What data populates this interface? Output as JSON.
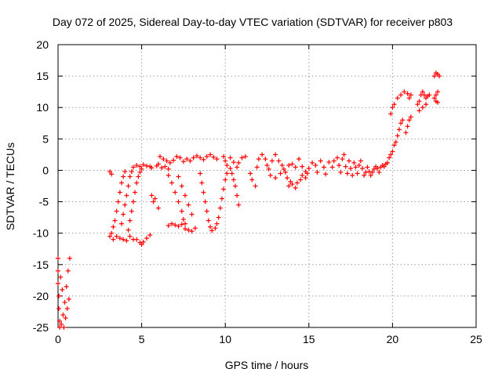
{
  "chart_data": {
    "type": "scatter",
    "title": "Day 072 of 2025, Sidereal Day-to-day VTEC variation (SDTVAR) for receiver p803",
    "xlabel": "GPS time / hours",
    "ylabel": "SDTVAR / TECUs",
    "xlim": [
      0,
      25
    ],
    "ylim": [
      -25,
      20
    ],
    "x_ticks": [
      0,
      5,
      10,
      15,
      20,
      25
    ],
    "x_tick_labels": [
      "0",
      "5",
      "10",
      "15",
      "20",
      "25"
    ],
    "y_ticks": [
      -25,
      -20,
      -15,
      -10,
      -5,
      0,
      5,
      10,
      15,
      20
    ],
    "y_tick_labels": [
      "-25",
      "-20",
      "-15",
      "-10",
      "-5",
      "0",
      "5",
      "10",
      "15",
      "20"
    ],
    "grid": true,
    "marker": "+",
    "series": [
      {
        "name": "SDTVAR",
        "color": "#ff0000",
        "points": [
          [
            0.0,
            -14
          ],
          [
            0.0,
            -16
          ],
          [
            0.0,
            -18
          ],
          [
            0.05,
            -20
          ],
          [
            0.05,
            -22
          ],
          [
            0.1,
            -24
          ],
          [
            0.1,
            -25
          ],
          [
            0.2,
            -24.5
          ],
          [
            0.3,
            -23
          ],
          [
            0.4,
            -21
          ],
          [
            0.5,
            -18.5
          ],
          [
            0.6,
            -16
          ],
          [
            0.7,
            -14
          ],
          [
            0.35,
            -25
          ],
          [
            0.45,
            -23.5
          ],
          [
            0.55,
            -22
          ],
          [
            0.65,
            -20.5
          ],
          [
            0.25,
            -19
          ],
          [
            0.15,
            -17
          ],
          [
            3.1,
            -0.2
          ],
          [
            3.2,
            -0.6
          ],
          [
            3.1,
            -10.5
          ],
          [
            3.2,
            -10
          ],
          [
            3.3,
            -9
          ],
          [
            3.4,
            -8
          ],
          [
            3.5,
            -6.5
          ],
          [
            3.6,
            -5
          ],
          [
            3.7,
            -3.5
          ],
          [
            3.8,
            -2
          ],
          [
            3.9,
            -1
          ],
          [
            4.0,
            -0.2
          ],
          [
            3.3,
            -11
          ],
          [
            3.5,
            -10.5
          ],
          [
            3.7,
            -10.8
          ],
          [
            3.9,
            -11
          ],
          [
            4.1,
            -11.2
          ],
          [
            4.3,
            -10.5
          ],
          [
            4.5,
            -11
          ],
          [
            4.7,
            -11
          ],
          [
            4.9,
            -11.5
          ],
          [
            5.0,
            -11.8
          ],
          [
            5.1,
            -11.4
          ],
          [
            5.3,
            -10.8
          ],
          [
            5.5,
            -10.3
          ],
          [
            3.8,
            -8.5
          ],
          [
            3.9,
            -7
          ],
          [
            4.0,
            -5.5
          ],
          [
            4.1,
            -4
          ],
          [
            4.2,
            -2.5
          ],
          [
            4.3,
            -1
          ],
          [
            4.4,
            -0.2
          ],
          [
            4.2,
            -9.5
          ],
          [
            4.3,
            -8
          ],
          [
            4.4,
            -6.5
          ],
          [
            4.5,
            -5
          ],
          [
            4.6,
            -3.5
          ],
          [
            4.7,
            -2
          ],
          [
            4.8,
            -1
          ],
          [
            4.9,
            -0.3
          ],
          [
            5.0,
            0.2
          ],
          [
            4.5,
            0.5
          ],
          [
            4.7,
            0.8
          ],
          [
            4.9,
            0.6
          ],
          [
            5.1,
            0.9
          ],
          [
            5.3,
            0.7
          ],
          [
            5.5,
            0.6
          ],
          [
            5.6,
            -4
          ],
          [
            5.7,
            -5
          ],
          [
            5.8,
            -4.5
          ],
          [
            6.0,
            -6
          ],
          [
            5.6,
            0.4
          ],
          [
            5.9,
            0.7
          ],
          [
            6.0,
            1.0
          ],
          [
            6.2,
            0.4
          ],
          [
            6.4,
            0.6
          ],
          [
            6.6,
            0.2
          ],
          [
            6.1,
            2.2
          ],
          [
            6.3,
            1.8
          ],
          [
            6.5,
            1.5
          ],
          [
            6.7,
            1.2
          ],
          [
            6.9,
            1.6
          ],
          [
            7.1,
            2.2
          ],
          [
            7.3,
            2.0
          ],
          [
            7.5,
            1.4
          ],
          [
            7.7,
            1.8
          ],
          [
            7.9,
            1.5
          ],
          [
            8.1,
            2.0
          ],
          [
            8.3,
            2.3
          ],
          [
            8.5,
            2.0
          ],
          [
            8.7,
            1.7
          ],
          [
            8.9,
            2.2
          ],
          [
            9.1,
            2.5
          ],
          [
            9.3,
            2.1
          ],
          [
            9.5,
            1.8
          ],
          [
            6.6,
            -0.8
          ],
          [
            6.8,
            -2
          ],
          [
            7.0,
            -3.5
          ],
          [
            7.2,
            -5
          ],
          [
            7.4,
            -6.5
          ],
          [
            7.5,
            -7.8
          ],
          [
            7.6,
            -8.5
          ],
          [
            7.2,
            -1
          ],
          [
            7.4,
            -2.5
          ],
          [
            7.6,
            -4
          ],
          [
            7.8,
            -5.5
          ],
          [
            8.0,
            -7
          ],
          [
            6.6,
            -8.8
          ],
          [
            6.8,
            -8.5
          ],
          [
            7.0,
            -8.7
          ],
          [
            7.2,
            -8.9
          ],
          [
            7.4,
            -8.6
          ],
          [
            7.6,
            -9.3
          ],
          [
            7.8,
            -9.5
          ],
          [
            8.0,
            -9.7
          ],
          [
            8.2,
            -9.2
          ],
          [
            8.5,
            -0.5
          ],
          [
            8.6,
            -2
          ],
          [
            8.7,
            -3.5
          ],
          [
            8.8,
            -5
          ],
          [
            8.9,
            -6.5
          ],
          [
            9.0,
            -8
          ],
          [
            9.1,
            -9
          ],
          [
            9.2,
            -9.6
          ],
          [
            9.4,
            -9.2
          ],
          [
            9.5,
            -8.5
          ],
          [
            9.6,
            -7.5
          ],
          [
            9.7,
            -6
          ],
          [
            9.8,
            -4.5
          ],
          [
            9.9,
            -3
          ],
          [
            10.0,
            -1.5
          ],
          [
            10.1,
            -0.5
          ],
          [
            9.9,
            2.2
          ],
          [
            10.0,
            1.5
          ],
          [
            10.1,
            0.8
          ],
          [
            10.3,
            0.3
          ],
          [
            10.4,
            -0.5
          ],
          [
            10.5,
            -1.5
          ],
          [
            10.6,
            -2.5
          ],
          [
            10.7,
            -4
          ],
          [
            10.8,
            -5.5
          ],
          [
            10.3,
            2.0
          ],
          [
            10.5,
            1.3
          ],
          [
            10.7,
            0.5
          ],
          [
            10.8,
            1.2
          ],
          [
            11.0,
            2.0
          ],
          [
            11.2,
            2.2
          ],
          [
            11.5,
            -0.5
          ],
          [
            11.6,
            -1.5
          ],
          [
            11.8,
            -2.5
          ],
          [
            11.9,
            0.5
          ],
          [
            12.0,
            1.8
          ],
          [
            12.2,
            2.5
          ],
          [
            12.4,
            1.8
          ],
          [
            12.5,
            0.8
          ],
          [
            12.6,
            0.2
          ],
          [
            12.8,
            1.5
          ],
          [
            13.0,
            2.5
          ],
          [
            13.2,
            1.5
          ],
          [
            13.4,
            0.8
          ],
          [
            13.5,
            0.2
          ],
          [
            13.7,
            -1.2
          ],
          [
            13.8,
            -2.5
          ],
          [
            13.9,
            -1.8
          ],
          [
            12.7,
            -0.8
          ],
          [
            13.0,
            -1.2
          ],
          [
            13.3,
            -0.5
          ],
          [
            13.6,
            -0.3
          ],
          [
            13.8,
            0.8
          ],
          [
            14.0,
            -2.2
          ],
          [
            14.2,
            -2.8
          ],
          [
            14.3,
            -2.0
          ],
          [
            14.5,
            -1.5
          ],
          [
            14.6,
            -0.8
          ],
          [
            14.8,
            -1.2
          ],
          [
            14.9,
            -0.5
          ],
          [
            14.0,
            1.0
          ],
          [
            14.2,
            0.5
          ],
          [
            14.4,
            1.8
          ],
          [
            14.6,
            0.6
          ],
          [
            14.8,
            -0.2
          ],
          [
            15.0,
            0.3
          ],
          [
            15.2,
            1.2
          ],
          [
            15.4,
            0.8
          ],
          [
            15.5,
            -0.3
          ],
          [
            15.7,
            1.5
          ],
          [
            15.9,
            0.5
          ],
          [
            16.0,
            -0.6
          ],
          [
            16.2,
            1.3
          ],
          [
            16.4,
            0.5
          ],
          [
            16.5,
            1.5
          ],
          [
            16.7,
            2.0
          ],
          [
            16.8,
            0.8
          ],
          [
            16.9,
            -0.3
          ],
          [
            17.0,
            1.8
          ],
          [
            17.1,
            2.5
          ],
          [
            17.2,
            0.6
          ],
          [
            17.3,
            -0.5
          ],
          [
            17.4,
            1.5
          ],
          [
            17.5,
            0.3
          ],
          [
            17.6,
            -0.8
          ],
          [
            17.7,
            1.2
          ],
          [
            17.8,
            0.5
          ],
          [
            17.9,
            -0.5
          ],
          [
            18.0,
            0.8
          ],
          [
            18.1,
            1.5
          ],
          [
            18.2,
            0.3
          ],
          [
            18.3,
            -0.8
          ],
          [
            18.4,
            -0.3
          ],
          [
            18.5,
            0.5
          ],
          [
            18.6,
            -0.2
          ],
          [
            18.7,
            -0.8
          ],
          [
            18.8,
            -0.3
          ],
          [
            18.9,
            0.2
          ],
          [
            19.0,
            0.6
          ],
          [
            19.1,
            0.3
          ],
          [
            19.2,
            -0.3
          ],
          [
            19.3,
            0.5
          ],
          [
            19.4,
            0.8
          ],
          [
            19.5,
            0.6
          ],
          [
            19.6,
            1.0
          ],
          [
            19.7,
            1.2
          ],
          [
            19.8,
            2.0
          ],
          [
            19.9,
            2.5
          ],
          [
            20.0,
            3.0
          ],
          [
            20.1,
            4.0
          ],
          [
            20.2,
            4.5
          ],
          [
            20.3,
            5.5
          ],
          [
            20.4,
            6.5
          ],
          [
            20.5,
            7.5
          ],
          [
            20.6,
            8.0
          ],
          [
            19.9,
            9.0
          ],
          [
            20.0,
            10.0
          ],
          [
            20.1,
            10.5
          ],
          [
            20.3,
            11.5
          ],
          [
            20.5,
            12
          ],
          [
            20.7,
            12.5
          ],
          [
            20.9,
            12.2
          ],
          [
            21.0,
            11.5
          ],
          [
            21.1,
            12.0
          ],
          [
            20.8,
            6.0
          ],
          [
            20.9,
            7.0
          ],
          [
            21.0,
            8.0
          ],
          [
            21.1,
            8.5
          ],
          [
            21.5,
            10.5
          ],
          [
            21.6,
            11.0
          ],
          [
            21.7,
            12.0
          ],
          [
            21.8,
            12.5
          ],
          [
            21.9,
            12.0
          ],
          [
            22.0,
            11.5
          ],
          [
            22.1,
            11.8
          ],
          [
            22.2,
            12.0
          ],
          [
            21.6,
            9.5
          ],
          [
            21.8,
            10.0
          ],
          [
            22.0,
            10.5
          ],
          [
            22.5,
            11.5
          ],
          [
            22.6,
            12.0
          ],
          [
            22.7,
            12.5
          ],
          [
            22.6,
            11.0
          ],
          [
            22.7,
            10.8
          ],
          [
            22.5,
            15.0
          ],
          [
            22.6,
            15.5
          ],
          [
            22.7,
            15.3
          ],
          [
            22.8,
            15.0
          ]
        ]
      }
    ]
  }
}
